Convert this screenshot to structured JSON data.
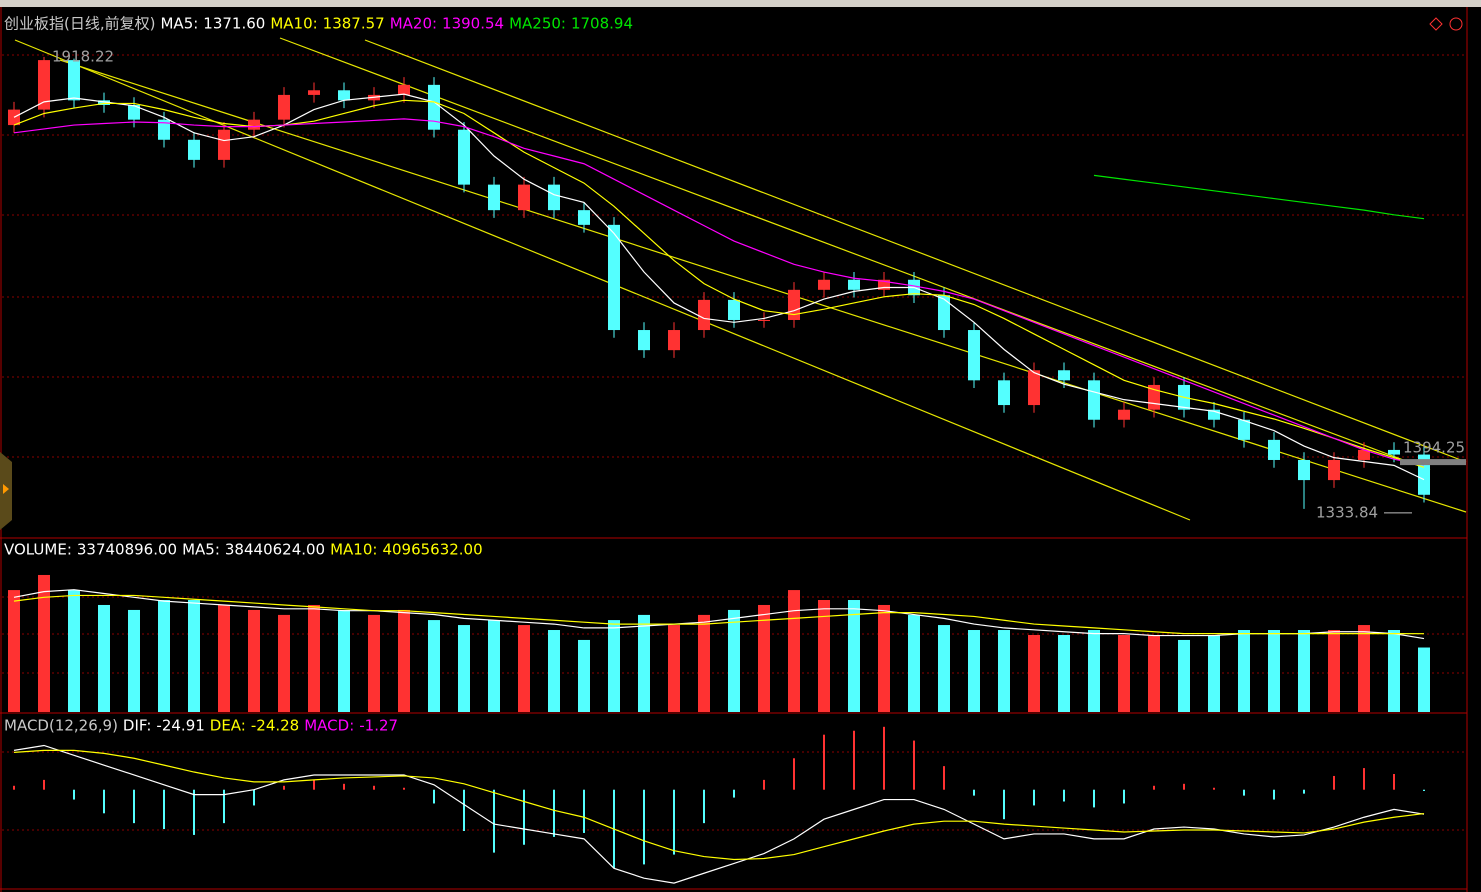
{
  "chart_data": [
    {
      "type": "candlestick",
      "title": "创业板指(日线,前复权)",
      "ylim": [
        1300,
        1940
      ],
      "up_color": "#ff3232",
      "down_color": "#54ffff",
      "open": [
        1830,
        1850,
        1914,
        1862,
        1856,
        1837,
        1811,
        1785,
        1824,
        1837,
        1869,
        1875,
        1862,
        1869,
        1882,
        1824,
        1753,
        1720,
        1753,
        1720,
        1701,
        1565,
        1539,
        1565,
        1604,
        1578,
        1578,
        1617,
        1630,
        1617,
        1630,
        1610,
        1565,
        1500,
        1468,
        1513,
        1500,
        1449,
        1462,
        1494,
        1462,
        1449,
        1423,
        1397,
        1371,
        1397,
        1410,
        1404
      ],
      "high": [
        1860,
        1918.22,
        1916,
        1872,
        1866,
        1847,
        1821,
        1834,
        1847,
        1879,
        1885,
        1885,
        1879,
        1892,
        1892,
        1834,
        1763,
        1763,
        1763,
        1730,
        1711,
        1575,
        1575,
        1614,
        1614,
        1588,
        1627,
        1640,
        1640,
        1640,
        1640,
        1620,
        1575,
        1510,
        1523,
        1523,
        1510,
        1472,
        1504,
        1504,
        1472,
        1459,
        1433,
        1407,
        1407,
        1420,
        1420,
        1414
      ],
      "low": [
        1820,
        1840,
        1852,
        1846,
        1827,
        1801,
        1775,
        1775,
        1814,
        1827,
        1859,
        1852,
        1852,
        1859,
        1814,
        1743,
        1710,
        1710,
        1710,
        1691,
        1555,
        1529,
        1529,
        1555,
        1568,
        1568,
        1568,
        1607,
        1607,
        1607,
        1600,
        1555,
        1490,
        1458,
        1458,
        1490,
        1439,
        1439,
        1452,
        1452,
        1439,
        1413,
        1387,
        1333.84,
        1361,
        1387,
        1394,
        1342
      ],
      "close": [
        1850,
        1914,
        1862,
        1856,
        1837,
        1811,
        1785,
        1824,
        1837,
        1869,
        1875,
        1862,
        1869,
        1882,
        1824,
        1753,
        1720,
        1753,
        1720,
        1701,
        1565,
        1539,
        1565,
        1604,
        1578,
        1578,
        1617,
        1630,
        1617,
        1630,
        1610,
        1565,
        1500,
        1468,
        1513,
        1500,
        1449,
        1462,
        1494,
        1462,
        1449,
        1423,
        1397,
        1371,
        1397,
        1410,
        1404,
        1352
      ],
      "series": [
        {
          "name": "MA5:",
          "label": "1371.60",
          "color": "#ffffff",
          "values": [
            1840,
            1860,
            1865,
            1860,
            1855,
            1840,
            1820,
            1810,
            1815,
            1830,
            1850,
            1862,
            1866,
            1870,
            1860,
            1830,
            1790,
            1760,
            1740,
            1730,
            1690,
            1640,
            1600,
            1580,
            1575,
            1580,
            1590,
            1605,
            1615,
            1620,
            1620,
            1605,
            1575,
            1540,
            1510,
            1495,
            1485,
            1475,
            1470,
            1465,
            1460,
            1448,
            1435,
            1415,
            1400,
            1395,
            1390,
            1371.6
          ]
        },
        {
          "name": "MA10:",
          "label": "1387.57",
          "color": "#ffff00",
          "values": [
            1830,
            1845,
            1852,
            1858,
            1858,
            1850,
            1840,
            1832,
            1828,
            1830,
            1835,
            1845,
            1855,
            1862,
            1860,
            1845,
            1820,
            1795,
            1775,
            1755,
            1725,
            1690,
            1655,
            1625,
            1605,
            1590,
            1585,
            1592,
            1600,
            1608,
            1612,
            1610,
            1598,
            1580,
            1560,
            1540,
            1520,
            1500,
            1488,
            1478,
            1470,
            1460,
            1450,
            1438,
            1425,
            1412,
            1400,
            1387.57
          ]
        },
        {
          "name": "MA20:",
          "label": "1390.54",
          "color": "#ff00ff",
          "values": [
            1820,
            1825,
            1830,
            1832,
            1834,
            1833,
            1830,
            1828,
            1828,
            1830,
            1832,
            1834,
            1836,
            1838,
            1835,
            1828,
            1815,
            1800,
            1790,
            1780,
            1760,
            1740,
            1720,
            1700,
            1680,
            1665,
            1650,
            1640,
            1632,
            1628,
            1622,
            1615,
            1605,
            1590,
            1575,
            1560,
            1545,
            1530,
            1515,
            1500,
            1485,
            1470,
            1455,
            1440,
            1425,
            1410,
            1398,
            1390.54
          ]
        },
        {
          "name": "MA250:",
          "label": "1708.94",
          "color": "#00e600",
          "values": [
            null,
            null,
            null,
            null,
            null,
            null,
            null,
            null,
            null,
            null,
            null,
            null,
            null,
            null,
            null,
            null,
            null,
            null,
            null,
            null,
            null,
            null,
            null,
            null,
            null,
            null,
            null,
            null,
            null,
            null,
            null,
            null,
            null,
            null,
            null,
            null,
            1765,
            1760,
            1755,
            1750,
            1745,
            1740,
            1735,
            1730,
            1725,
            1720,
            1714,
            1708.94
          ]
        }
      ],
      "annotations": [
        {
          "value": 1918.22,
          "label": "1918.22"
        },
        {
          "value": 1394.25,
          "label": "1394.25"
        },
        {
          "value": 1333.84,
          "label": "1333.84"
        }
      ]
    },
    {
      "type": "volume",
      "ylim": [
        0,
        90000000
      ],
      "name": "VOLUME:",
      "label": "33740896.00",
      "values": [
        63800000,
        71700000,
        63800000,
        56000000,
        53400000,
        58600000,
        58600000,
        56000000,
        53400000,
        50800000,
        56000000,
        53400000,
        50800000,
        53400000,
        48100000,
        45500000,
        48100000,
        45500000,
        42900000,
        37700000,
        48100000,
        50800000,
        45500000,
        50800000,
        53400000,
        56000000,
        63800000,
        58600000,
        58600000,
        56000000,
        50800000,
        45500000,
        42900000,
        42900000,
        40300000,
        40300000,
        42900000,
        40300000,
        40300000,
        37700000,
        40300000,
        42900000,
        42900000,
        42900000,
        42900000,
        45500000,
        42900000,
        33740896
      ],
      "series": [
        {
          "name": "MA5:",
          "label": "38440624.00",
          "color": "#ffffff",
          "values": [
            60000000,
            63000000,
            64000000,
            62000000,
            60000000,
            58000000,
            57000000,
            56000000,
            55000000,
            54000000,
            54000000,
            53000000,
            53000000,
            52000000,
            51000000,
            49000000,
            48000000,
            47000000,
            46000000,
            44000000,
            44000000,
            45000000,
            46000000,
            47000000,
            49000000,
            51000000,
            53000000,
            54000000,
            54000000,
            53000000,
            51000000,
            49000000,
            46000000,
            44000000,
            43000000,
            42000000,
            41000000,
            41000000,
            40000000,
            40000000,
            40000000,
            41000000,
            41000000,
            41000000,
            42000000,
            42000000,
            41000000,
            38440624
          ]
        },
        {
          "name": "MA10:",
          "label": "40965632.00",
          "color": "#ffff00",
          "values": [
            58000000,
            60000000,
            61000000,
            61000000,
            61000000,
            60000000,
            59000000,
            58000000,
            57000000,
            56000000,
            55000000,
            54000000,
            53000000,
            53000000,
            52000000,
            51000000,
            50000000,
            49000000,
            48000000,
            47000000,
            46000000,
            46000000,
            46000000,
            46000000,
            47000000,
            48000000,
            49000000,
            50000000,
            51000000,
            52000000,
            52000000,
            51000000,
            50000000,
            48000000,
            46000000,
            45000000,
            44000000,
            43000000,
            42000000,
            41000000,
            41000000,
            41000000,
            41000000,
            41000000,
            41000000,
            41000000,
            41000000,
            40965632
          ]
        }
      ]
    },
    {
      "type": "macd",
      "title": "MACD(12,26,9)",
      "ylim": [
        -100,
        75
      ],
      "up_color": "#ff3232",
      "down_color": "#54ffff",
      "series": [
        {
          "name": "DIF:",
          "label": "-24.91",
          "color": "#ffffff",
          "values": [
            40,
            45,
            35,
            25,
            15,
            5,
            -5,
            -5,
            0,
            10,
            15,
            15,
            15,
            15,
            5,
            -15,
            -35,
            -40,
            -45,
            -50,
            -80,
            -90,
            -95,
            -85,
            -75,
            -65,
            -50,
            -30,
            -20,
            -10,
            -10,
            -20,
            -35,
            -50,
            -45,
            -45,
            -50,
            -50,
            -40,
            -38,
            -40,
            -45,
            -48,
            -46,
            -38,
            -28,
            -20,
            -24.91
          ]
        },
        {
          "name": "DEA:",
          "label": "-24.28",
          "color": "#ffff00",
          "values": [
            38,
            40,
            40,
            37,
            32,
            25,
            18,
            12,
            8,
            8,
            10,
            12,
            13,
            14,
            12,
            6,
            -3,
            -12,
            -21,
            -28,
            -40,
            -52,
            -62,
            -68,
            -71,
            -70,
            -66,
            -58,
            -50,
            -42,
            -35,
            -32,
            -32,
            -35,
            -37,
            -39,
            -41,
            -43,
            -42,
            -41,
            -41,
            -42,
            -43,
            -44,
            -40,
            -33,
            -28,
            -24.28
          ]
        }
      ],
      "histogram": {
        "name": "MACD:",
        "label": "-1.27",
        "color": "#ff00ff",
        "values": [
          4,
          10,
          -10,
          -24,
          -34,
          -40,
          -46,
          -34,
          -16,
          4,
          10,
          6,
          4,
          2,
          -14,
          -42,
          -64,
          -56,
          -48,
          -44,
          -80,
          -76,
          -66,
          -34,
          -8,
          10,
          32,
          56,
          60,
          64,
          50,
          24,
          -6,
          -30,
          -16,
          -12,
          -18,
          -14,
          4,
          6,
          2,
          -6,
          -10,
          -4,
          14,
          22,
          16,
          -1.27
        ]
      }
    }
  ]
}
